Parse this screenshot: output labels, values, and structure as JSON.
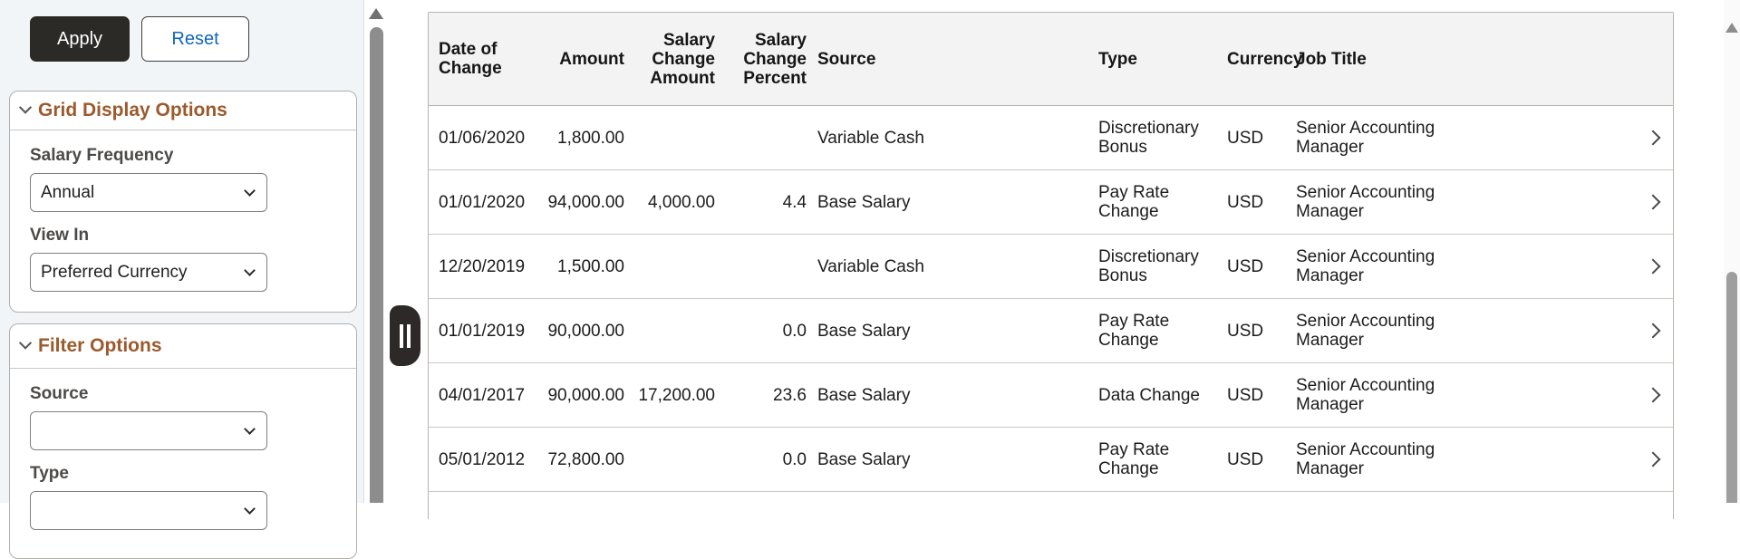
{
  "sidebar": {
    "apply_button": "Apply",
    "reset_button": "Reset",
    "sections": [
      {
        "title": "Grid Display Options",
        "icon": "chevron-down-icon",
        "fields": [
          {
            "label": "Salary Frequency",
            "value": "Annual"
          },
          {
            "label": "View In",
            "value": "Preferred Currency"
          }
        ]
      },
      {
        "title": "Filter Options",
        "icon": "chevron-down-icon",
        "fields": [
          {
            "label": "Source",
            "value": ""
          },
          {
            "label": "Type",
            "value": ""
          }
        ]
      }
    ]
  },
  "grid": {
    "columns": [
      "Date of Change",
      "Amount",
      "Salary Change Amount",
      "Salary Change Percent",
      "Source",
      "Type",
      "Currency",
      "Job Title"
    ],
    "rows": [
      {
        "date": "01/06/2020",
        "amount": "1,800.00",
        "change_amount": "",
        "change_percent": "",
        "source": "Variable Cash",
        "type": "Discretionary Bonus",
        "currency": "USD",
        "job_title": "Senior Accounting Manager"
      },
      {
        "date": "01/01/2020",
        "amount": "94,000.00",
        "change_amount": "4,000.00",
        "change_percent": "4.4",
        "source": "Base Salary",
        "type": "Pay Rate Change",
        "currency": "USD",
        "job_title": "Senior Accounting Manager"
      },
      {
        "date": "12/20/2019",
        "amount": "1,500.00",
        "change_amount": "",
        "change_percent": "",
        "source": "Variable Cash",
        "type": "Discretionary Bonus",
        "currency": "USD",
        "job_title": "Senior Accounting Manager"
      },
      {
        "date": "01/01/2019",
        "amount": "90,000.00",
        "change_amount": "",
        "change_percent": "0.0",
        "source": "Base Salary",
        "type": "Pay Rate Change",
        "currency": "USD",
        "job_title": "Senior Accounting Manager"
      },
      {
        "date": "04/01/2017",
        "amount": "90,000.00",
        "change_amount": "17,200.00",
        "change_percent": "23.6",
        "source": "Base Salary",
        "type": "Data Change",
        "currency": "USD",
        "job_title": "Senior Accounting Manager"
      },
      {
        "date": "05/01/2012",
        "amount": "72,800.00",
        "change_amount": "",
        "change_percent": "0.0",
        "source": "Base Salary",
        "type": "Pay Rate Change",
        "currency": "USD",
        "job_title": "Senior Accounting Manager"
      }
    ],
    "row_action_icon": "chevron-right-icon"
  },
  "scroll": {
    "left_up_icon": "triangle-up",
    "right_up_icon": "triangle-up",
    "panel_handle_icon": "drag-handle-bars"
  },
  "colors": {
    "accent_brown": "#9c5a2c",
    "dark_button": "#2c2a27",
    "link_blue": "#1266bd",
    "sidebar_bg": "#f1f5f7",
    "header_bg": "#f3f3f3"
  }
}
